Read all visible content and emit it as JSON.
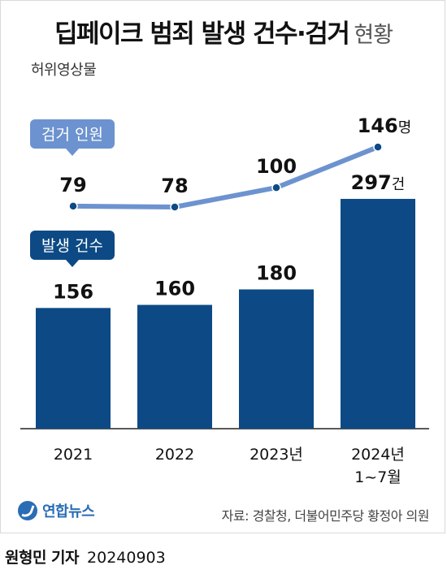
{
  "header": {
    "title_main": "딥페이크 범죄 발생 건수·검거",
    "title_sub": "현황",
    "subtitle": "허위영상물"
  },
  "footer": {
    "logo_text": "연합뉴스",
    "source": "자료: 경찰청, 더불어민주당 황정아 의원",
    "author": "원형민 기자",
    "date": "20240903"
  },
  "colors": {
    "bar": "#0d4a85",
    "line": "#6c93cf",
    "line_label_bg": "#6c93cf",
    "bar_label_bg": "#0d4a85"
  },
  "chart_data": {
    "type": "bar",
    "categories": [
      "2021",
      "2022",
      "2023년",
      "2024년\n1~7월"
    ],
    "series": [
      {
        "name": "발생 건수",
        "type": "bar",
        "values": [
          156,
          160,
          180,
          297
        ],
        "labels": [
          "156",
          "160",
          "180",
          "297건"
        ]
      },
      {
        "name": "검거 인원",
        "type": "line",
        "values": [
          79,
          78,
          100,
          146
        ],
        "labels": [
          "79",
          "78",
          "100",
          "146명"
        ]
      }
    ]
  }
}
